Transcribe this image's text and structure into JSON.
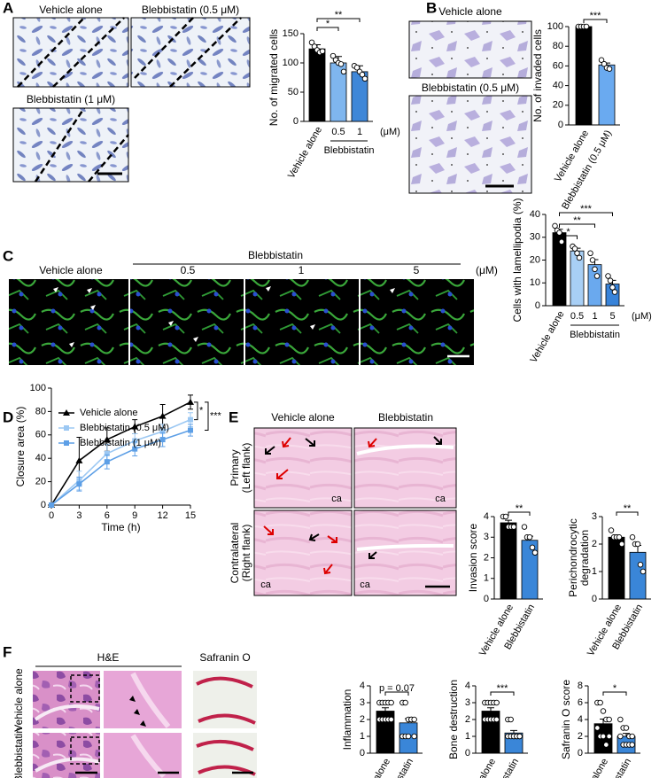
{
  "panels": {
    "A": {
      "letter": "A",
      "images": [
        "Vehicle alone",
        "Blebbistatin (0.5 μM)",
        "Blebbistatin (1 μM)"
      ]
    },
    "B": {
      "letter": "B",
      "images": [
        "Vehicle alone",
        "Blebbistatin (0.5 μM)"
      ]
    },
    "C": {
      "letter": "C",
      "group": "Blebbistatin",
      "columns": [
        "Vehicle alone",
        "0.5",
        "1",
        "5"
      ],
      "unit": "(μM)"
    },
    "D": {
      "letter": "D"
    },
    "E": {
      "letter": "E",
      "columns": [
        "Vehicle alone",
        "Blebbistatin"
      ],
      "rows": [
        [
          "Primary",
          "(Left flank)"
        ],
        [
          "Contralateral",
          "(Right flank)"
        ]
      ],
      "image_marks": [
        "ca",
        "ca",
        "ca",
        "ca"
      ]
    },
    "F": {
      "letter": "F",
      "columns": [
        "H&E",
        "Safranin O"
      ],
      "rows": [
        "Vehicle alone",
        "Blebbistatin"
      ]
    }
  },
  "chart_data": [
    {
      "type": "bar",
      "y_label": [
        "No. of migrated cells"
      ],
      "categories": [
        "Vehicle alone",
        "0.5",
        "1"
      ],
      "colors": [
        "#000000",
        "#7fb6ef",
        "#3f87d8"
      ],
      "values": [
        124,
        100,
        85
      ],
      "errors": [
        7,
        11,
        10
      ],
      "points": [
        [
          135,
          128,
          122,
          118,
          120
        ],
        [
          112,
          105,
          100,
          98,
          85
        ],
        [
          95,
          92,
          85,
          80,
          73
        ]
      ],
      "ylim": [
        0,
        150
      ],
      "yticks": [
        0,
        50,
        100,
        150
      ],
      "group_label": "Blebbistatin",
      "unit": "(μM)",
      "significance": [
        "*",
        "**"
      ]
    },
    {
      "type": "bar",
      "y_label": [
        "No. of invaded cells"
      ],
      "categories": [
        "Vehicle alone",
        "Blebbistatin (0.5 μM)"
      ],
      "colors": [
        "#000000",
        "#6aaaf0"
      ],
      "values": [
        100,
        61
      ],
      "errors": [
        0.5,
        2
      ],
      "points": [
        [
          100,
          100,
          100,
          100
        ],
        [
          66,
          62,
          58,
          57
        ]
      ],
      "ylim": [
        0,
        100
      ],
      "yticks": [
        0,
        20,
        40,
        60,
        80,
        100
      ],
      "significance": [
        "***"
      ]
    },
    {
      "type": "bar",
      "y_label": [
        "Cells with lamellipodia (%)"
      ],
      "categories": [
        "Vehicle alone",
        "0.5",
        "1",
        "5"
      ],
      "colors": [
        "#000000",
        "#a8cff5",
        "#6aa9ee",
        "#3883d9"
      ],
      "values": [
        32,
        24,
        18,
        9.5
      ],
      "errors": [
        1.5,
        1.2,
        2.2,
        1.6
      ],
      "points": [
        [
          35,
          33,
          32,
          28
        ],
        [
          26,
          25,
          23,
          21
        ],
        [
          23,
          20,
          16,
          13
        ],
        [
          13,
          11,
          8,
          6
        ]
      ],
      "ylim": [
        0,
        40
      ],
      "yticks": [
        0,
        10,
        20,
        30,
        40
      ],
      "group_label": "Blebbistatin",
      "unit": "(μM)",
      "significance": [
        "*",
        "**",
        "***"
      ]
    },
    {
      "type": "line",
      "x_label": "Time (h)",
      "y_label": [
        "Closure area (%)"
      ],
      "x": [
        0,
        3,
        6,
        9,
        12,
        15
      ],
      "xlim": [
        0,
        15
      ],
      "xticks": [
        0,
        3,
        6,
        9,
        12,
        15
      ],
      "ylim": [
        0,
        100
      ],
      "yticks": [
        0,
        20,
        40,
        60,
        80,
        100
      ],
      "series": [
        {
          "name": "Vehicle alone",
          "color": "#000000",
          "marker": "triangle",
          "values": [
            0,
            38,
            56,
            67,
            76,
            88
          ],
          "errors": [
            0,
            20,
            10,
            6,
            10,
            6
          ]
        },
        {
          "name": "Blebbistatin (0.5 μM)",
          "color": "#9cc8f3",
          "marker": "square",
          "values": [
            0,
            21,
            44,
            55,
            63,
            73
          ],
          "errors": [
            0,
            8,
            8,
            6,
            6,
            6
          ]
        },
        {
          "name": "Blebbistatin (1 μM)",
          "color": "#5d9fe6",
          "marker": "square",
          "values": [
            0,
            18,
            37,
            48,
            56,
            64
          ],
          "errors": [
            0,
            6,
            6,
            6,
            6,
            5
          ]
        }
      ],
      "significance": [
        "*",
        "***"
      ]
    },
    {
      "type": "bar",
      "y_label": [
        "Invasion score"
      ],
      "categories": [
        "Vehicle alone",
        "Blebbistatin"
      ],
      "colors": [
        "#000000",
        "#3a86d8"
      ],
      "values": [
        3.7,
        2.85
      ],
      "errors": [
        0.12,
        0.2
      ],
      "points": [
        [
          4,
          4,
          3.5,
          3.5,
          3.5
        ],
        [
          3.5,
          3,
          3,
          2.5,
          2.25
        ]
      ],
      "ylim": [
        0,
        4
      ],
      "yticks": [
        0,
        1,
        2,
        3,
        4
      ],
      "significance": [
        "**"
      ]
    },
    {
      "type": "bar",
      "y_label": [
        "Perichondrocytic",
        "degradation"
      ],
      "categories": [
        "Vehicle alone",
        "Blebbistatin"
      ],
      "colors": [
        "#000000",
        "#3a86d8"
      ],
      "values": [
        2.25,
        1.7
      ],
      "errors": [
        0.08,
        0.25
      ],
      "points": [
        [
          2.5,
          2.25,
          2.25,
          2.25,
          2
        ],
        [
          2.25,
          2,
          2,
          1.25,
          1
        ]
      ],
      "ylim": [
        0,
        3
      ],
      "yticks": [
        0,
        1,
        2,
        3
      ],
      "significance": [
        "**"
      ]
    },
    {
      "type": "bar",
      "y_label": [
        "Inflammation"
      ],
      "categories": [
        "Vehicle alone",
        "Blebbistatin"
      ],
      "colors": [
        "#000000",
        "#3a86d8"
      ],
      "values": [
        2.5,
        1.8
      ],
      "errors": [
        0.2,
        0.25
      ],
      "points": [
        [
          3,
          3,
          3,
          3,
          3,
          2,
          2,
          2,
          2,
          2
        ],
        [
          3,
          3,
          2,
          2,
          1,
          1,
          1,
          1,
          2,
          2
        ]
      ],
      "ylim": [
        0,
        4
      ],
      "yticks": [
        0,
        1,
        2,
        3,
        4
      ],
      "significance": [
        "p = 0.07"
      ]
    },
    {
      "type": "bar",
      "y_label": [
        "Bone destruction"
      ],
      "categories": [
        "Vehicle alone",
        "Blebbistatin"
      ],
      "colors": [
        "#000000",
        "#3a86d8"
      ],
      "values": [
        2.5,
        1.2
      ],
      "errors": [
        0.2,
        0.15
      ],
      "points": [
        [
          3,
          3,
          3,
          3,
          3,
          2,
          2,
          2,
          2,
          2
        ],
        [
          2,
          2,
          1,
          1,
          1,
          1,
          1,
          1,
          1,
          1
        ]
      ],
      "ylim": [
        0,
        4
      ],
      "yticks": [
        0,
        1,
        2,
        3,
        4
      ],
      "significance": [
        "***"
      ]
    },
    {
      "type": "bar",
      "y_label": [
        "Safranin O score"
      ],
      "categories": [
        "Vehicle alone",
        "Blebbistatin"
      ],
      "colors": [
        "#000000",
        "#3a86d8"
      ],
      "values": [
        3.5,
        2.0
      ],
      "errors": [
        0.55,
        0.35
      ],
      "points": [
        [
          6,
          6,
          5,
          4,
          4,
          3,
          2,
          2,
          1,
          2
        ],
        [
          4,
          3,
          3,
          2,
          2,
          2,
          1,
          1,
          1,
          1
        ]
      ],
      "ylim": [
        0,
        8
      ],
      "yticks": [
        0,
        2,
        4,
        6,
        8
      ],
      "significance": [
        "*"
      ]
    }
  ]
}
